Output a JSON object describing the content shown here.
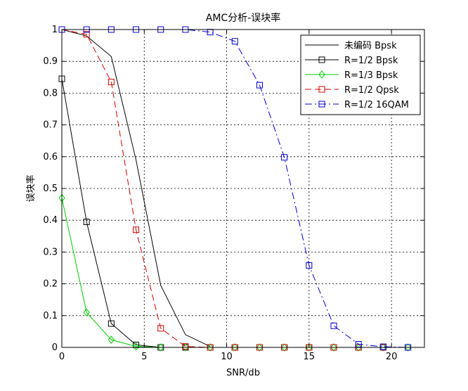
{
  "chart_data": {
    "type": "line",
    "title": "AMC分析-误块率",
    "xlabel": "SNR/db",
    "ylabel": "误块率",
    "xlim": [
      0,
      22
    ],
    "ylim": [
      0,
      1
    ],
    "xticks": [
      0,
      5,
      10,
      15,
      20
    ],
    "yticks": [
      0,
      0.1,
      0.2,
      0.3,
      0.4,
      0.5,
      0.6,
      0.7,
      0.8,
      0.9,
      1
    ],
    "xtick_labels": [
      "0",
      "5",
      "10",
      "15",
      "20"
    ],
    "ytick_labels": [
      "0",
      "0.1",
      "0.2",
      "0.3",
      "0.4",
      "0.5",
      "0.6",
      "0.7",
      "0.8",
      "0.9",
      "1"
    ],
    "grid": true,
    "legend_position": "top-right",
    "series": [
      {
        "name": "未编码 Bpsk",
        "color": "#000000",
        "style": "solid",
        "marker": "none",
        "x": [
          0,
          1.5,
          3,
          4.5,
          6,
          7.5,
          9
        ],
        "y": [
          1.0,
          0.98,
          0.915,
          0.59,
          0.195,
          0.04,
          0.003
        ]
      },
      {
        "name": "R=1/2 Bpsk",
        "color": "#000000",
        "style": "solid",
        "marker": "square",
        "x": [
          0,
          1.5,
          3,
          4.5,
          6,
          7.5,
          9,
          10.5,
          12,
          13.5,
          15,
          16.5,
          18,
          19.5,
          21
        ],
        "y": [
          0.845,
          0.395,
          0.075,
          0.008,
          0.0,
          0.0,
          0.0,
          0.0,
          0.0,
          0.0,
          0.0,
          0.0,
          0.0,
          0.0,
          0.0
        ]
      },
      {
        "name": "R=1/3 Bpsk",
        "color": "#00cc00",
        "style": "solid",
        "marker": "diamond",
        "x": [
          0,
          1.5,
          3,
          4.5,
          6,
          7.5,
          9,
          10.5,
          12,
          13.5,
          15,
          16.5,
          18,
          19.5,
          21
        ],
        "y": [
          0.47,
          0.11,
          0.024,
          0.003,
          0.0,
          0.0,
          0.0,
          0.0,
          0.0,
          0.0,
          0.0,
          0.0,
          0.0,
          0.0,
          0.0
        ]
      },
      {
        "name": "R=1/2 Qpsk",
        "color": "#cc0000",
        "style": "dashed",
        "marker": "square",
        "x": [
          0,
          1.5,
          3,
          4.5,
          6,
          7.5,
          9,
          10.5,
          12,
          13.5,
          15,
          16.5,
          18,
          19.5,
          21
        ],
        "y": [
          1.0,
          0.985,
          0.835,
          0.37,
          0.06,
          0.003,
          0.0,
          0.0,
          0.0,
          0.0,
          0.0,
          0.0,
          0.0,
          0.0,
          0.0
        ]
      },
      {
        "name": "R=1/2 16QAM",
        "color": "#0000cc",
        "style": "dashdot",
        "marker": "square",
        "x": [
          0,
          1.5,
          3,
          4.5,
          6,
          7.5,
          9,
          10.5,
          12,
          13.5,
          15,
          16.5,
          18,
          19.5,
          21
        ],
        "y": [
          1.0,
          1.0,
          1.0,
          1.0,
          1.0,
          1.0,
          0.992,
          0.963,
          0.825,
          0.598,
          0.258,
          0.068,
          0.01,
          0.002,
          0.0
        ]
      }
    ]
  }
}
